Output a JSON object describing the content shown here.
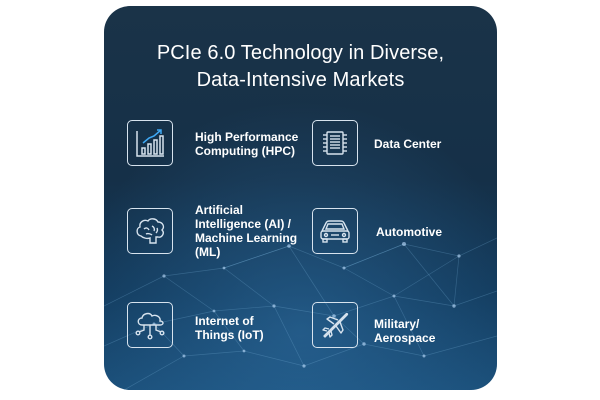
{
  "title": {
    "line1": "PCIe 6.0 Technology in Diverse,",
    "line2": "Data-Intensive Markets"
  },
  "markets": [
    {
      "icon": "bar-chart-icon",
      "label_lines": [
        "High Performance",
        "Computing (HPC)"
      ]
    },
    {
      "icon": "server-chip-icon",
      "label_lines": [
        "Data Center"
      ]
    },
    {
      "icon": "brain-icon",
      "label_lines": [
        "Artificial",
        "Intelligence (AI) /",
        "Machine Learning",
        "(ML)"
      ]
    },
    {
      "icon": "car-icon",
      "label_lines": [
        "Automotive"
      ]
    },
    {
      "icon": "cloud-network-icon",
      "label_lines": [
        "Internet of",
        "Things (IoT)"
      ]
    },
    {
      "icon": "aircraft-icon",
      "label_lines": [
        "Military/",
        "Aerospace"
      ]
    }
  ],
  "colors": {
    "card_background": "#15304a",
    "accent_blue": "#3fa9f5",
    "text": "#ffffff",
    "icon_stroke": "#d7e3ee"
  }
}
